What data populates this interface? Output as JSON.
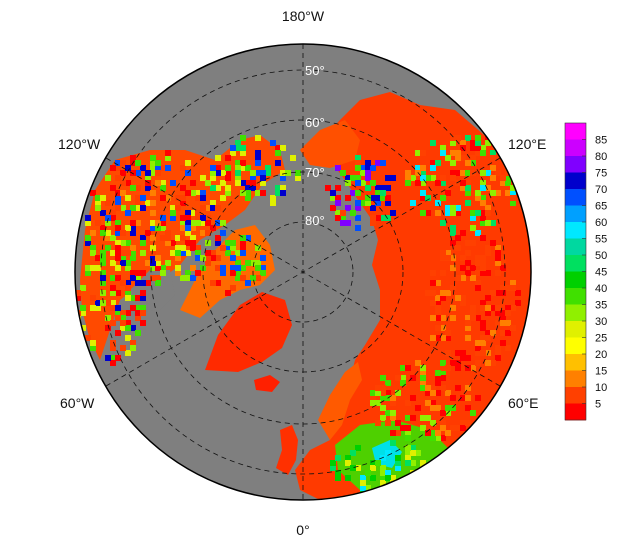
{
  "map": {
    "projection": "north-polar-stereographic",
    "ocean_color": "#7f7f7f",
    "graticule": "dashed",
    "longitude_labels": {
      "top": "180°W",
      "bottom": "0°",
      "upper_left": "120°W",
      "lower_left": "60°W",
      "upper_right": "120°E",
      "lower_right": "60°E"
    },
    "latitude_labels": [
      "50°",
      "60°",
      "70°",
      "80°"
    ]
  },
  "colorbar": {
    "ticks": [
      "85",
      "80",
      "75",
      "70",
      "65",
      "60",
      "55",
      "50",
      "45",
      "40",
      "35",
      "30",
      "25",
      "20",
      "15",
      "10",
      "5"
    ],
    "colors": [
      "#ff00ff",
      "#cc00ff",
      "#8000ff",
      "#0000cc",
      "#0050ff",
      "#00a0ff",
      "#00e8ff",
      "#00d8a0",
      "#00e060",
      "#00d000",
      "#40e000",
      "#90f000",
      "#e0f000",
      "#ffff00",
      "#ffc000",
      "#ff8000",
      "#ff4000",
      "#ff0000"
    ]
  }
}
